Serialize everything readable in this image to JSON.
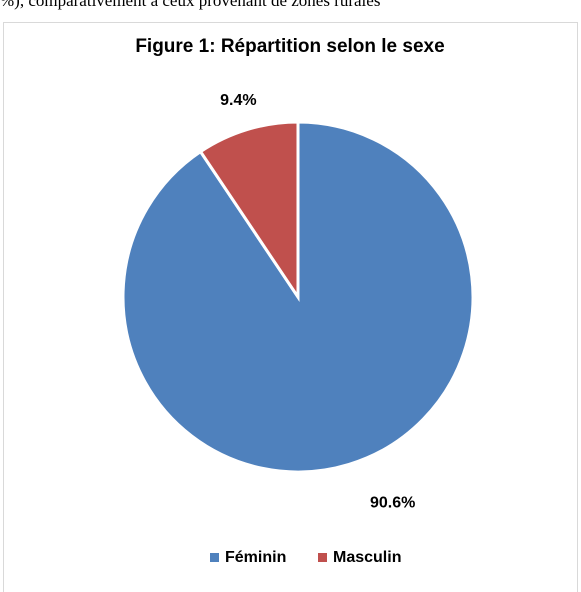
{
  "header_text": "%), comparativement à ceux provenant de zones rurales",
  "chart_data": {
    "type": "pie",
    "title": "Figure 1: Répartition selon le sexe",
    "categories": [
      "Féminin",
      "Masculin"
    ],
    "values": [
      90.6,
      9.4
    ],
    "value_labels": [
      "90.6%",
      "9.4%"
    ],
    "colors": [
      "#4f81bd",
      "#c0504d"
    ],
    "legend": "bottom"
  }
}
